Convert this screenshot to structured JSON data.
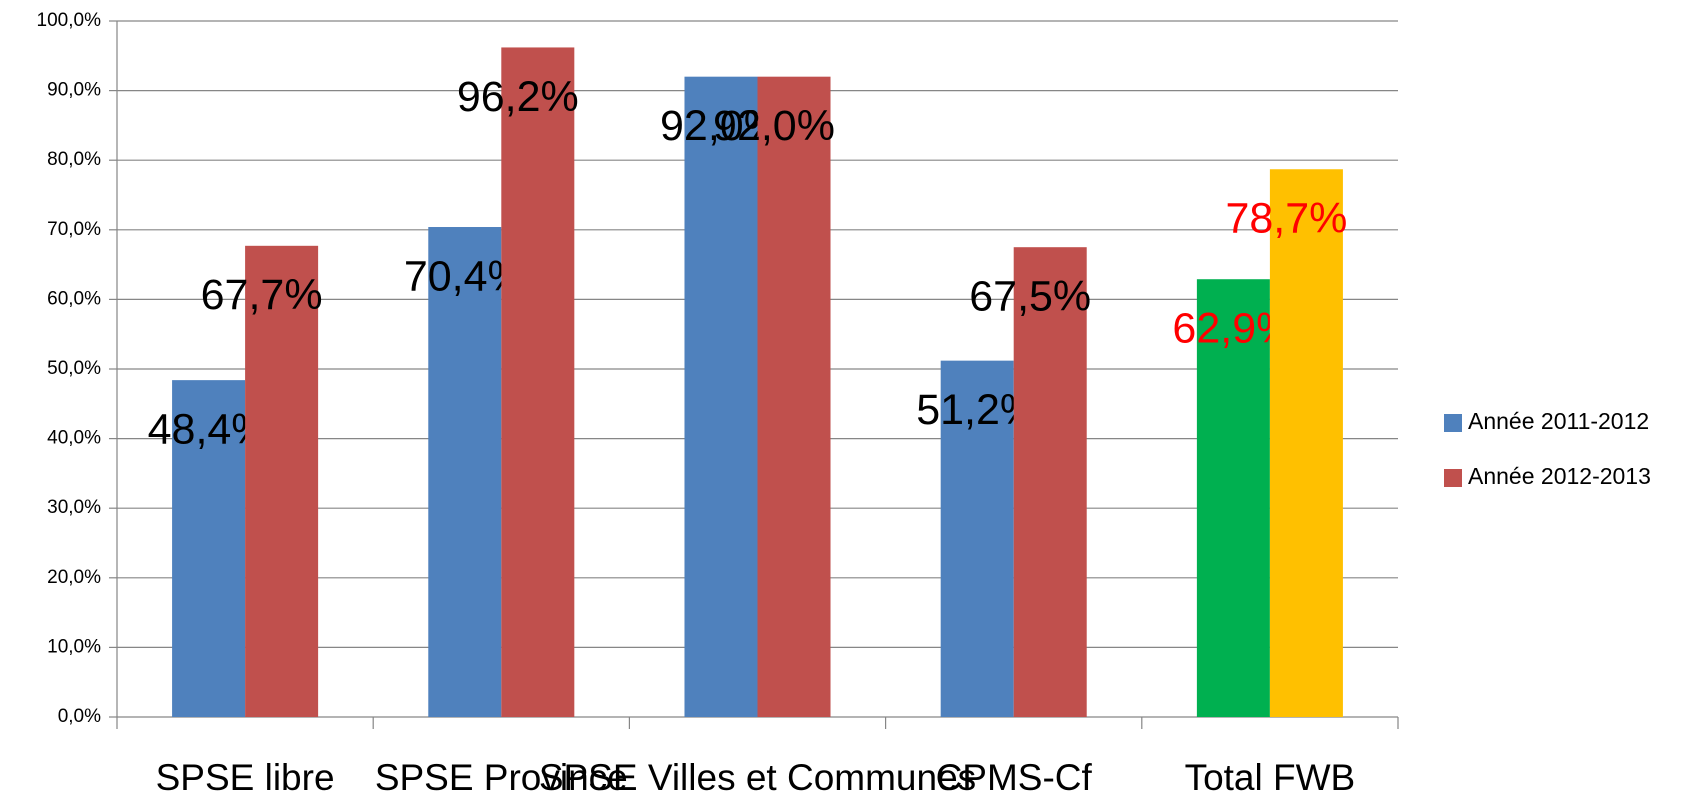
{
  "chart_data": {
    "type": "bar",
    "categories": [
      "SPSE libre",
      "SPSE Province",
      "SPSE Villes et Communes",
      "CPMS-Cf",
      "Total FWB"
    ],
    "series": [
      {
        "name": "Année 2011-2012",
        "color": "#4f81bd",
        "colors": [
          "#4f81bd",
          "#4f81bd",
          "#4f81bd",
          "#4f81bd",
          "#00b050"
        ],
        "label_colors": [
          "#000000",
          "#000000",
          "#000000",
          "#000000",
          "#ff0000"
        ],
        "values": [
          48.4,
          70.4,
          92.0,
          51.2,
          62.9
        ],
        "value_labels": [
          "48,4%",
          "70,4%",
          "92,0%",
          "51,2%",
          "62,9%"
        ]
      },
      {
        "name": "Année 2012-2013",
        "color": "#c0504d",
        "colors": [
          "#c0504d",
          "#c0504d",
          "#c0504d",
          "#c0504d",
          "#ffc000"
        ],
        "label_colors": [
          "#000000",
          "#000000",
          "#000000",
          "#000000",
          "#ff0000"
        ],
        "values": [
          67.7,
          96.2,
          92.0,
          67.5,
          78.7
        ],
        "value_labels": [
          "67,7%",
          "96,2%",
          "92,0%",
          "67,5%",
          "78,7%"
        ]
      }
    ],
    "ylim": [
      0,
      100
    ],
    "yticks": [
      {
        "value": 0,
        "label": "0,0%"
      },
      {
        "value": 10,
        "label": "10,0%"
      },
      {
        "value": 20,
        "label": "20,0%"
      },
      {
        "value": 30,
        "label": "30,0%"
      },
      {
        "value": 40,
        "label": "40,0%"
      },
      {
        "value": 50,
        "label": "50,0%"
      },
      {
        "value": 60,
        "label": "60,0%"
      },
      {
        "value": 70,
        "label": "70,0%"
      },
      {
        "value": 80,
        "label": "80,0%"
      },
      {
        "value": 90,
        "label": "90,0%"
      },
      {
        "value": 100,
        "label": "100,0%"
      }
    ],
    "grid": true,
    "legend": "right"
  }
}
